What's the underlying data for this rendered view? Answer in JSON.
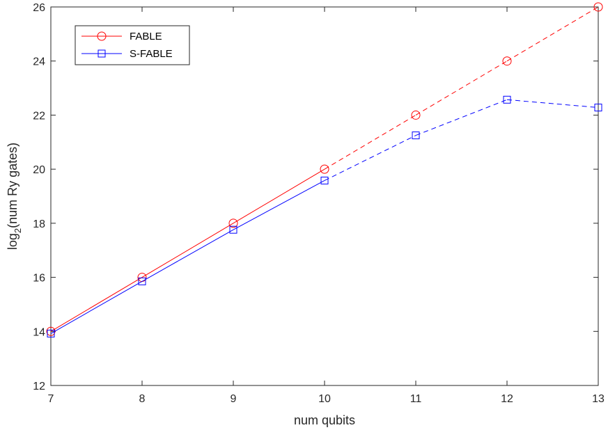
{
  "chart_data": {
    "type": "line",
    "x": [
      7,
      8,
      9,
      10,
      11,
      12,
      13
    ],
    "xlabel": "num qubits",
    "ylabel_main": "log",
    "ylabel_sub": "2",
    "ylabel_rest": "(num Ry gates)",
    "xlim": [
      7,
      13
    ],
    "ylim": [
      12,
      26
    ],
    "xticks": [
      "7",
      "8",
      "9",
      "10",
      "11",
      "12",
      "13"
    ],
    "yticks": [
      "12",
      "14",
      "16",
      "18",
      "20",
      "22",
      "24",
      "26"
    ],
    "grid": false,
    "legend_position": "top-left",
    "solid_through_x": 10,
    "series": [
      {
        "name": "FABLE",
        "color": "#ff0000",
        "marker": "circle",
        "values": [
          14.0,
          16.0,
          18.0,
          20.0,
          22.0,
          24.0,
          26.0
        ]
      },
      {
        "name": "S-FABLE",
        "color": "#0000ff",
        "marker": "square",
        "values": [
          13.92,
          15.85,
          17.76,
          19.58,
          21.25,
          22.57,
          22.28
        ]
      }
    ]
  }
}
